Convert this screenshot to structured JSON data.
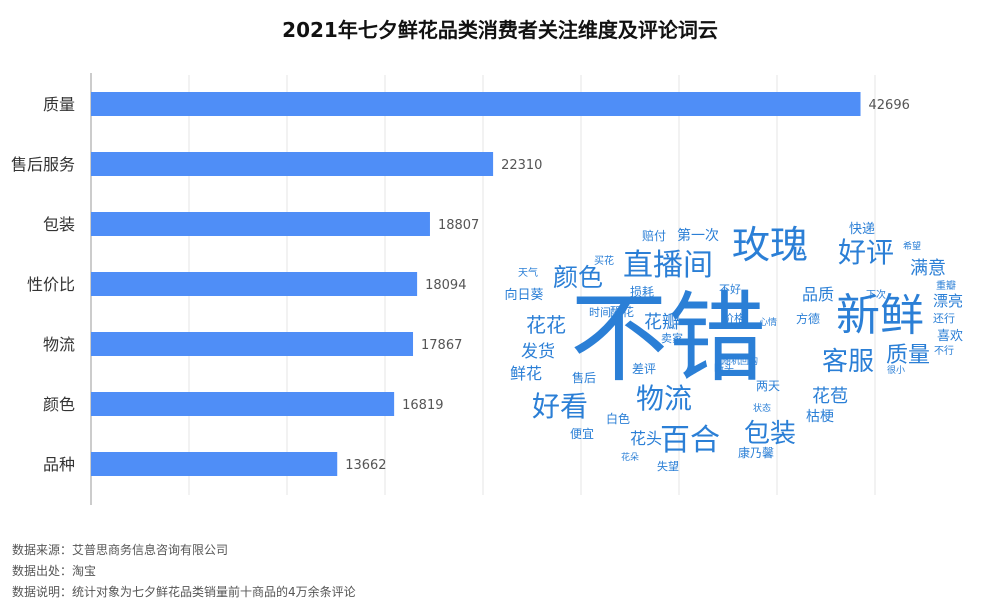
{
  "title": "2021年七夕鲜花品类消费者关注维度及评论词云",
  "chart_data": {
    "type": "bar",
    "orientation": "horizontal",
    "title": "2021年七夕鲜花品类消费者关注维度及评论词云",
    "categories": [
      "质量",
      "售后服务",
      "包装",
      "性价比",
      "物流",
      "颜色",
      "品种"
    ],
    "values": [
      42696,
      22310,
      18807,
      18094,
      17867,
      16819,
      13662
    ],
    "xlim": [
      0,
      43000
    ],
    "grid": true,
    "color": "#4f8ef7"
  },
  "word_cloud": {
    "color": "#2b7fd6",
    "words": [
      {
        "text": "不错",
        "weight": 100
      },
      {
        "text": "新鲜",
        "weight": 45
      },
      {
        "text": "玫瑰",
        "weight": 39
      },
      {
        "text": "直播间",
        "weight": 31
      },
      {
        "text": "好评",
        "weight": 29
      },
      {
        "text": "物流",
        "weight": 29
      },
      {
        "text": "百合",
        "weight": 31
      },
      {
        "text": "好看",
        "weight": 29
      },
      {
        "text": "包装",
        "weight": 27
      },
      {
        "text": "客服",
        "weight": 27
      },
      {
        "text": "颜色",
        "weight": 25
      },
      {
        "text": "质量",
        "weight": 22
      },
      {
        "text": "花花",
        "weight": 20
      },
      {
        "text": "花瓣",
        "weight": 18
      },
      {
        "text": "满意",
        "weight": 18
      },
      {
        "text": "花苞",
        "weight": 18
      },
      {
        "text": "发货",
        "weight": 17
      },
      {
        "text": "鲜花",
        "weight": 16
      },
      {
        "text": "品质",
        "weight": 16
      },
      {
        "text": "花头",
        "weight": 16
      },
      {
        "text": "漂亮",
        "weight": 15
      },
      {
        "text": "枯梗",
        "weight": 14
      },
      {
        "text": "喜欢",
        "weight": 13
      },
      {
        "text": "第一次",
        "weight": 14
      },
      {
        "text": "快递",
        "weight": 13
      },
      {
        "text": "向日葵",
        "weight": 13
      },
      {
        "text": "损耗",
        "weight": 12
      },
      {
        "text": "醒花",
        "weight": 12
      },
      {
        "text": "赔付",
        "weight": 12
      },
      {
        "text": "售后",
        "weight": 12
      },
      {
        "text": "差评",
        "weight": 12
      },
      {
        "text": "白色",
        "weight": 12
      },
      {
        "text": "便宜",
        "weight": 12
      },
      {
        "text": "康乃馨",
        "weight": 12
      },
      {
        "text": "两天",
        "weight": 12
      },
      {
        "text": "方德",
        "weight": 12
      },
      {
        "text": "失望",
        "weight": 11
      },
      {
        "text": "价格",
        "weight": 11
      },
      {
        "text": "时间",
        "weight": 11
      },
      {
        "text": "卖家",
        "weight": 11
      },
      {
        "text": "不好",
        "weight": 11
      },
      {
        "text": "还行",
        "weight": 11
      },
      {
        "text": "下次",
        "weight": 10
      },
      {
        "text": "重瓣",
        "weight": 10
      },
      {
        "text": "不行",
        "weight": 10
      },
      {
        "text": "买花",
        "weight": 10
      },
      {
        "text": "天气",
        "weight": 10
      },
      {
        "text": "断头",
        "weight": 10
      },
      {
        "text": "随机回购",
        "weight": 9
      },
      {
        "text": "状态",
        "weight": 9
      },
      {
        "text": "心情",
        "weight": 9
      },
      {
        "text": "花朵",
        "weight": 9
      },
      {
        "text": "很小",
        "weight": 9
      },
      {
        "text": "希望",
        "weight": 9
      }
    ]
  },
  "footer": {
    "source": "数据来源：艾普思商务信息咨询有限公司",
    "origin": "数据出处：淘宝",
    "note": "数据说明：统计对象为七夕鲜花品类销量前十商品的4万余条评论"
  }
}
